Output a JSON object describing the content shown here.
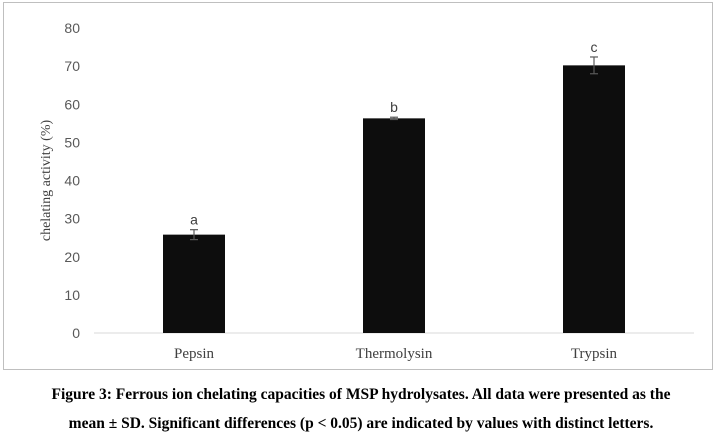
{
  "chart_data": {
    "type": "bar",
    "categories": [
      "Pepsin",
      "Thermolysin",
      "Trypsin"
    ],
    "values": [
      25.8,
      56.3,
      70.2
    ],
    "errors": [
      1.3,
      0.3,
      2.2
    ],
    "significance_labels": [
      "a",
      "b",
      "c"
    ],
    "title": "",
    "xlabel": "",
    "ylabel": "chelating activity (%)",
    "ylim": [
      0,
      80
    ],
    "yticks": [
      0,
      10,
      20,
      30,
      40,
      50,
      60,
      70,
      80
    ],
    "grid": false,
    "legend": "none",
    "bar_color": "#0d0d0d",
    "error_bar_color": "#595959",
    "axis_color": "#d9d9d9"
  },
  "caption": {
    "line1": "Figure 3: Ferrous ion chelating capacities of MSP hydrolysates. All data were presented as the",
    "line2": "mean ± SD. Significant differences (p < 0.05) are indicated by values with distinct letters."
  }
}
